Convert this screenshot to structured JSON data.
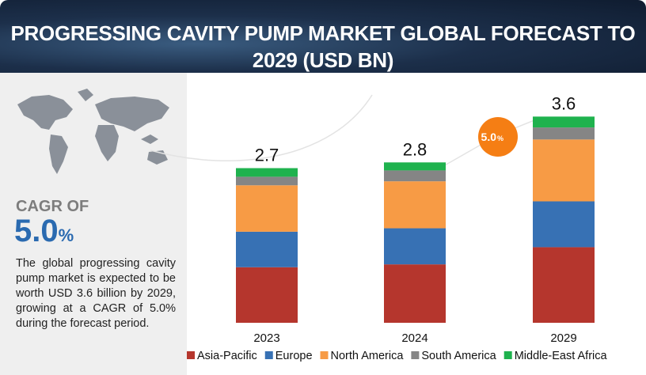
{
  "header": {
    "title": "PROGRESSING CAVITY PUMP MARKET GLOBAL FORECAST TO 2029 (USD BN)"
  },
  "sidebar": {
    "cagr_caption": "CAGR OF",
    "cagr_value": "5.0",
    "cagr_unit": "%",
    "description": "The global progressing cavity pump market is expected to be worth USD 3.6 billion by 2029, growing at a CAGR of 5.0% during the forecast period."
  },
  "chart_data": {
    "type": "stacked_bar",
    "categories": [
      "2023",
      "2024",
      "2029"
    ],
    "totals": [
      2.7,
      2.8,
      3.6
    ],
    "series": [
      {
        "name": "Asia-Pacific",
        "color": "#b5362d",
        "values": [
          0.97,
          1.02,
          1.32
        ]
      },
      {
        "name": "Europe",
        "color": "#3771b4",
        "values": [
          0.62,
          0.63,
          0.8
        ]
      },
      {
        "name": "North America",
        "color": "#f79b45",
        "values": [
          0.81,
          0.82,
          1.08
        ]
      },
      {
        "name": "South America",
        "color": "#858585",
        "values": [
          0.15,
          0.19,
          0.21
        ]
      },
      {
        "name": "Middle-East Africa",
        "color": "#1fb24e",
        "values": [
          0.15,
          0.14,
          0.19
        ]
      }
    ]
  }
}
